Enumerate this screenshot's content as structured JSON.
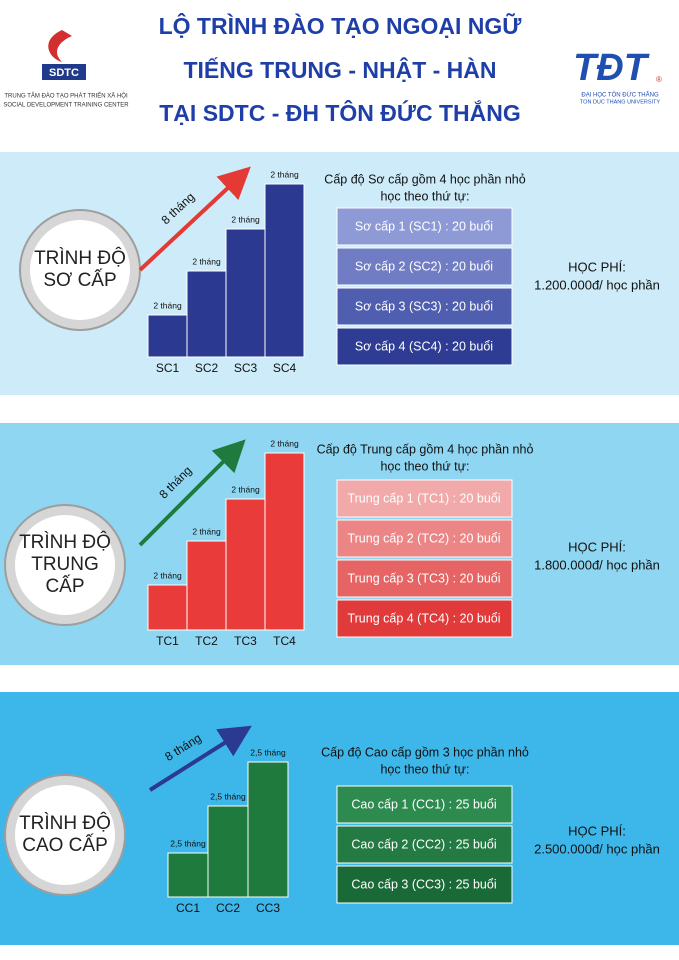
{
  "header": {
    "title": [
      "LỘ TRÌNH ĐÀO TẠO NGOẠI NGỮ",
      "TIẾNG TRUNG - NHẬT - HÀN",
      "TẠI SDTC - ĐH TÔN ĐỨC THẮNG"
    ],
    "left_logo": {
      "name": "SDTC",
      "lines": [
        "TRUNG TÂM ĐÀO TẠO PHÁT TRIỂN XÃ HỘI",
        "SOCIAL DEVELOPMENT TRAINING CENTER"
      ]
    },
    "right_logo": {
      "name": "TĐT",
      "mark": "®",
      "lines": [
        "ĐẠI HỌC TÔN ĐỨC THẮNG",
        "TON DUC THANG UNIVERSITY"
      ]
    }
  },
  "sections": [
    {
      "level": [
        "TRÌNH ĐỘ",
        "SƠ CẤP"
      ],
      "arrow_label": "8 tháng",
      "bars": [
        {
          "label": "SC1",
          "duration": "2 tháng"
        },
        {
          "label": "SC2",
          "duration": "2 tháng"
        },
        {
          "label": "SC3",
          "duration": "2 tháng"
        },
        {
          "label": "SC4",
          "duration": "2 tháng"
        }
      ],
      "intro": [
        "Cấp độ Sơ cấp gồm 4 học phần nhỏ",
        "học theo thứ tự:"
      ],
      "modules": [
        "Sơ cấp 1 (SC1) : 20 buổi",
        "Sơ cấp 2 (SC2) : 20 buổi",
        "Sơ cấp 3 (SC3) : 20 buổi",
        "Sơ cấp 4 (SC4) : 20 buổi"
      ],
      "fee_label": "HỌC PHÍ:",
      "fee": "1.200.000đ/ học phần"
    },
    {
      "level": [
        "TRÌNH ĐỘ",
        "TRUNG",
        "CẤP"
      ],
      "arrow_label": "8 tháng",
      "bars": [
        {
          "label": "TC1",
          "duration": "2 tháng"
        },
        {
          "label": "TC2",
          "duration": "2 tháng"
        },
        {
          "label": "TC3",
          "duration": "2 tháng"
        },
        {
          "label": "TC4",
          "duration": "2 tháng"
        }
      ],
      "intro": [
        "Cấp độ Trung cấp gồm 4 học phần nhỏ",
        "học theo thứ tự:"
      ],
      "modules": [
        "Trung cấp 1 (TC1) : 20 buổi",
        "Trung cấp 2 (TC2) : 20 buổi",
        "Trung cấp 3 (TC3) : 20 buổi",
        "Trung cấp 4 (TC4) : 20 buổi"
      ],
      "fee_label": "HỌC PHÍ:",
      "fee": "1.800.000đ/ học phần"
    },
    {
      "level": [
        "TRÌNH ĐỘ",
        "CAO CẤP"
      ],
      "arrow_label": "8 tháng",
      "bars": [
        {
          "label": "CC1",
          "duration": "2,5 tháng"
        },
        {
          "label": "CC2",
          "duration": "2,5 tháng"
        },
        {
          "label": "CC3",
          "duration": "2,5 tháng"
        }
      ],
      "intro": [
        "Cấp độ Cao cấp gồm 3 học phần nhỏ",
        "học theo thứ tự:"
      ],
      "modules": [
        "Cao cấp 1 (CC1) : 25 buổi",
        "Cao cấp 2 (CC2) : 25 buổi",
        "Cao cấp 3 (CC3) : 25 buổi"
      ],
      "fee_label": "HỌC PHÍ:",
      "fee": "2.500.000đ/ học phần"
    }
  ]
}
